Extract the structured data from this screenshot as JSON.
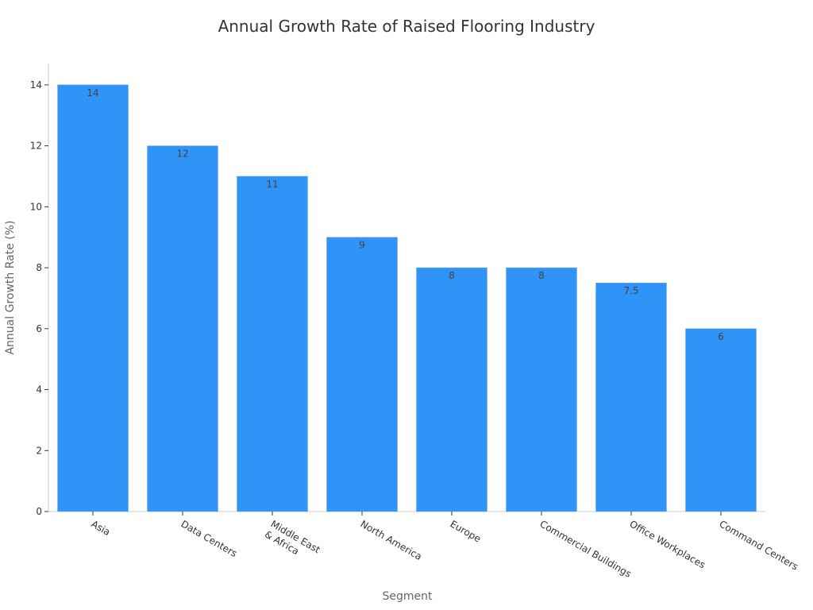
{
  "chart_data": {
    "type": "bar",
    "title": "Annual Growth Rate of Raised Flooring Industry",
    "xlabel": "Segment",
    "ylabel": "Annual Growth Rate (%)",
    "categories": [
      [
        "Asia"
      ],
      [
        "Data Centers"
      ],
      [
        "Middle East",
        "& Africa"
      ],
      [
        "North America"
      ],
      [
        "Europe"
      ],
      [
        "Commercial Buildings"
      ],
      [
        "Office Workplaces"
      ],
      [
        "Command Centers"
      ]
    ],
    "values": [
      14,
      12,
      11,
      9,
      8,
      8,
      7.5,
      6
    ],
    "data_labels": [
      "14",
      "12",
      "11",
      "9",
      "8",
      "8",
      "7.5",
      "6"
    ],
    "ylim": [
      0,
      14.7
    ],
    "yticks": [
      0,
      2,
      4,
      6,
      8,
      10,
      12,
      14
    ],
    "bar_color": "#2f93f7",
    "grid": false,
    "legend": "none"
  }
}
